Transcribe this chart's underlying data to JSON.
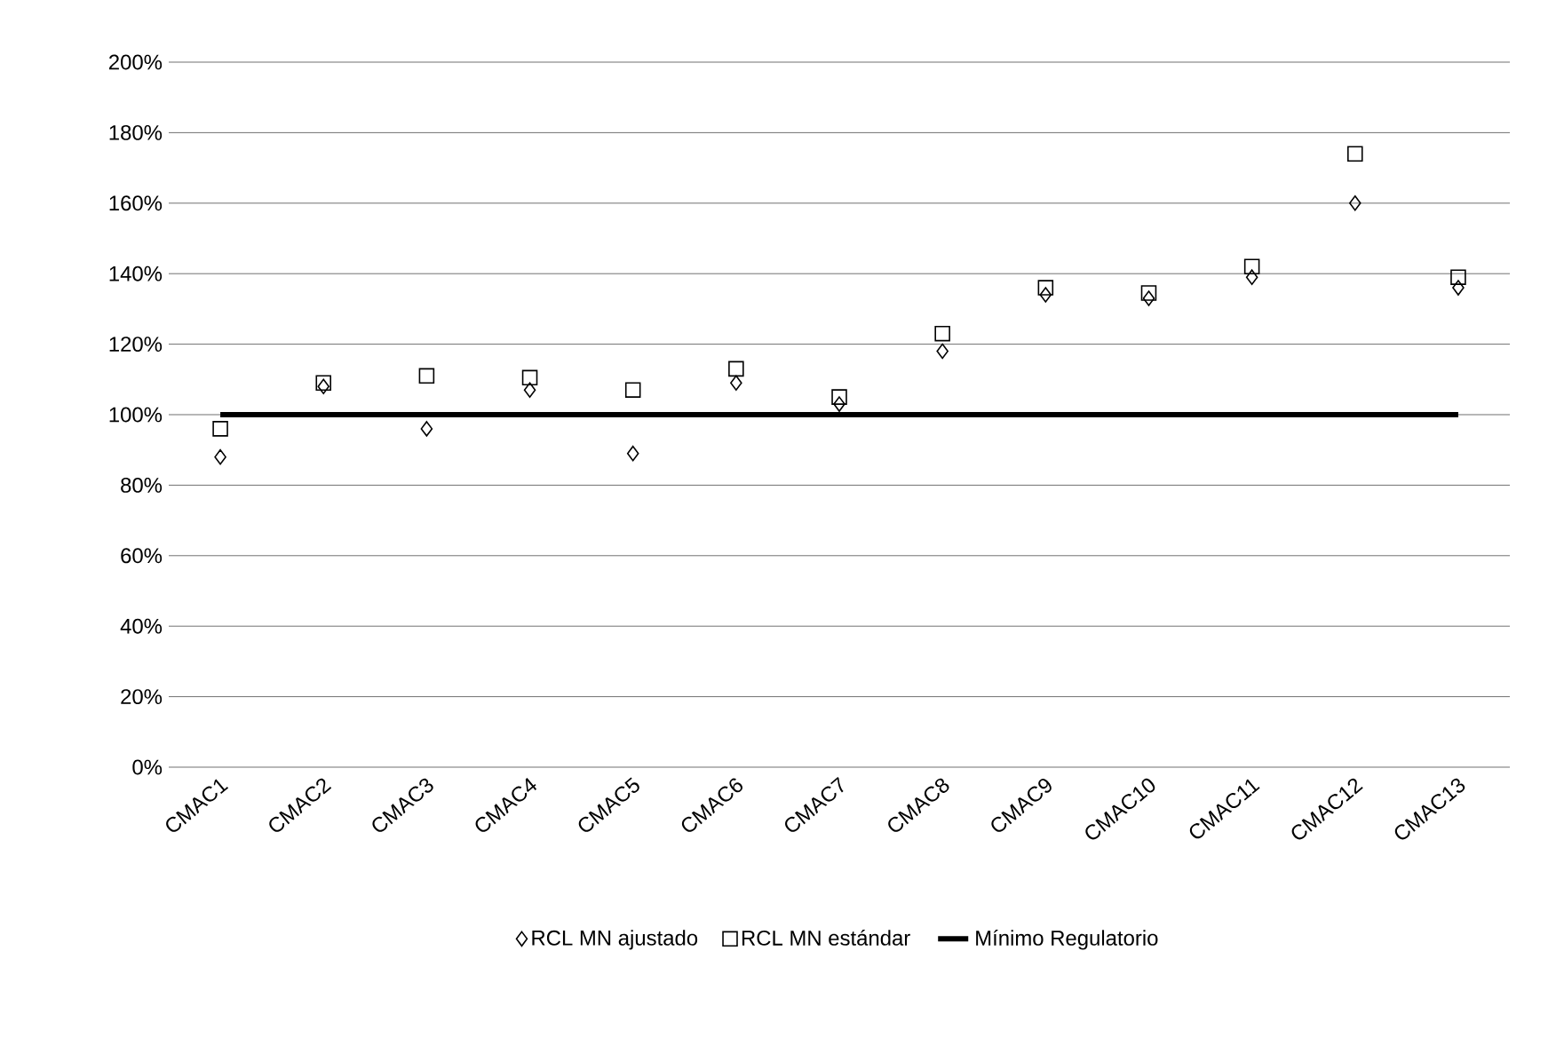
{
  "chart_data": {
    "type": "scatter",
    "categories": [
      "CMAC1",
      "CMAC2",
      "CMAC3",
      "CMAC4",
      "CMAC5",
      "CMAC6",
      "CMAC7",
      "CMAC8",
      "CMAC9",
      "CMAC10",
      "CMAC11",
      "CMAC12",
      "CMAC13"
    ],
    "series": [
      {
        "name": "RCL MN ajustado",
        "color": "#000000",
        "marker": "diamond",
        "values": [
          88,
          108,
          96,
          107,
          89,
          109,
          103,
          118,
          134,
          133,
          139,
          160,
          136
        ]
      },
      {
        "name": "RCL MN estándar",
        "color": "#000000",
        "marker": "square",
        "values": [
          96,
          109,
          111,
          110.5,
          107,
          113,
          105,
          123,
          136,
          134.5,
          142,
          174,
          139
        ]
      },
      {
        "name": "Mínimo Regulatorio",
        "type": "line",
        "color": "#000000",
        "marker": "none",
        "values": [
          100,
          100,
          100,
          100,
          100,
          100,
          100,
          100,
          100,
          100,
          100,
          100,
          100
        ]
      }
    ],
    "ylim": [
      0,
      200
    ],
    "yticks": [
      {
        "value": 0,
        "label": "0%"
      },
      {
        "value": 20,
        "label": "20%"
      },
      {
        "value": 40,
        "label": "40%"
      },
      {
        "value": 60,
        "label": "60%"
      },
      {
        "value": 80,
        "label": "80%"
      },
      {
        "value": 100,
        "label": "100%"
      },
      {
        "value": 120,
        "label": "120%"
      },
      {
        "value": 140,
        "label": "140%"
      },
      {
        "value": 160,
        "label": "160%"
      },
      {
        "value": 180,
        "label": "180%"
      },
      {
        "value": 200,
        "label": "200%"
      }
    ],
    "grid": "y",
    "legend": "bottom"
  }
}
